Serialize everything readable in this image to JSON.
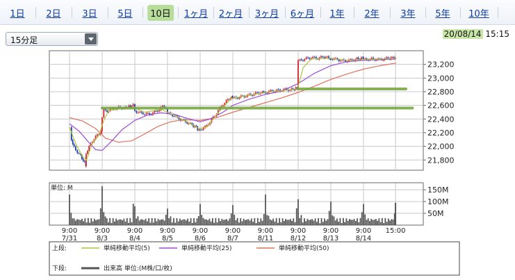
{
  "tabs": [
    {
      "label": "1日",
      "active": false
    },
    {
      "label": "2日",
      "active": false
    },
    {
      "label": "3日",
      "active": false
    },
    {
      "label": "5日",
      "active": false
    },
    {
      "label": "10日",
      "active": true
    },
    {
      "label": "1ヶ月",
      "active": false
    },
    {
      "label": "2ヶ月",
      "active": false
    },
    {
      "label": "3ヶ月",
      "active": false
    },
    {
      "label": "6ヶ月",
      "active": false
    },
    {
      "label": "1年",
      "active": false
    },
    {
      "label": "2年",
      "active": false
    },
    {
      "label": "3年",
      "active": false
    },
    {
      "label": "5年",
      "active": false
    },
    {
      "label": "10年",
      "active": false
    }
  ],
  "interval_select": {
    "value": "15分足"
  },
  "timestamp": {
    "date": "20/08/14",
    "time": "15:15"
  },
  "colors": {
    "up": "#d2202a",
    "down": "#1a3aa8",
    "ma5": "#b3c43c",
    "ma25": "#9c4bd6",
    "ma50": "#e0705a",
    "volume": "#555555",
    "trendline": "#78a843"
  },
  "chart_data": [
    {
      "type": "candlestick",
      "title": "",
      "x_tick_labels": [
        {
          "time": "9:00",
          "date": "7/31"
        },
        {
          "time": "9:00",
          "date": "8/3"
        },
        {
          "time": "9:00",
          "date": "8/4"
        },
        {
          "time": "9:00",
          "date": "8/5"
        },
        {
          "time": "9:00",
          "date": "8/6"
        },
        {
          "time": "9:00",
          "date": "8/7"
        },
        {
          "time": "9:00",
          "date": "8/11"
        },
        {
          "time": "9:00",
          "date": "8/12"
        },
        {
          "time": "9:00",
          "date": "8/13"
        },
        {
          "time": "9:00",
          "date": "8/14"
        },
        {
          "time": "15:00",
          "date": ""
        }
      ],
      "ylim": [
        21650,
        23400
      ],
      "y_ticks": [
        21800,
        22000,
        22200,
        22400,
        22600,
        22800,
        23000,
        23200
      ],
      "y_tick_labels": [
        "21,800",
        "22,000",
        "22,200",
        "22,400",
        "22,600",
        "22,800",
        "23,000",
        "23,200"
      ],
      "grid": true,
      "price_path": [
        [
          0,
          22280
        ],
        [
          0.06,
          22100
        ],
        [
          0.14,
          21980
        ],
        [
          0.24,
          21920
        ],
        [
          0.34,
          21860
        ],
        [
          0.42,
          21790
        ],
        [
          0.5,
          21730
        ],
        [
          0.51,
          21900
        ],
        [
          0.6,
          21990
        ],
        [
          0.7,
          22080
        ],
        [
          0.8,
          22140
        ],
        [
          0.9,
          22180
        ],
        [
          0.98,
          22210
        ],
        [
          1.0,
          22420
        ],
        [
          1.05,
          22530
        ],
        [
          1.15,
          22520
        ],
        [
          1.3,
          22550
        ],
        [
          1.45,
          22560
        ],
        [
          1.55,
          22570
        ],
        [
          1.7,
          22560
        ],
        [
          1.82,
          22580
        ],
        [
          1.95,
          22600
        ],
        [
          2.0,
          22520
        ],
        [
          2.15,
          22490
        ],
        [
          2.3,
          22480
        ],
        [
          2.45,
          22470
        ],
        [
          2.6,
          22500
        ],
        [
          2.75,
          22540
        ],
        [
          2.85,
          22580
        ],
        [
          2.95,
          22570
        ],
        [
          3.0,
          22480
        ],
        [
          3.15,
          22460
        ],
        [
          3.3,
          22420
        ],
        [
          3.45,
          22380
        ],
        [
          3.6,
          22350
        ],
        [
          3.75,
          22310
        ],
        [
          3.88,
          22280
        ],
        [
          3.96,
          22230
        ],
        [
          4.0,
          22250
        ],
        [
          4.15,
          22280
        ],
        [
          4.3,
          22360
        ],
        [
          4.45,
          22450
        ],
        [
          4.6,
          22560
        ],
        [
          4.75,
          22640
        ],
        [
          4.9,
          22700
        ],
        [
          4.98,
          22720
        ],
        [
          5.0,
          22700
        ],
        [
          5.2,
          22720
        ],
        [
          5.4,
          22740
        ],
        [
          5.6,
          22760
        ],
        [
          5.75,
          22780
        ],
        [
          5.9,
          22790
        ],
        [
          5.98,
          22800
        ],
        [
          6.0,
          22790
        ],
        [
          6.2,
          22810
        ],
        [
          6.4,
          22820
        ],
        [
          6.6,
          22830
        ],
        [
          6.8,
          22830
        ],
        [
          6.97,
          22850
        ],
        [
          7.0,
          23250
        ],
        [
          7.2,
          23280
        ],
        [
          7.4,
          23300
        ],
        [
          7.6,
          23290
        ],
        [
          7.8,
          23310
        ],
        [
          7.98,
          23290
        ],
        [
          8.0,
          23290
        ],
        [
          8.2,
          23270
        ],
        [
          8.4,
          23250
        ],
        [
          8.6,
          23260
        ],
        [
          8.8,
          23280
        ],
        [
          8.98,
          23290
        ],
        [
          9.0,
          23270
        ],
        [
          9.25,
          23280
        ],
        [
          9.5,
          23270
        ],
        [
          9.75,
          23290
        ],
        [
          9.98,
          23300
        ]
      ],
      "ma5": [
        [
          0,
          22280
        ],
        [
          0.2,
          22030
        ],
        [
          0.4,
          21850
        ],
        [
          0.52,
          21800
        ],
        [
          0.7,
          22050
        ],
        [
          0.9,
          22160
        ],
        [
          1.05,
          22380
        ],
        [
          1.2,
          22520
        ],
        [
          1.6,
          22560
        ],
        [
          2.0,
          22560
        ],
        [
          2.3,
          22500
        ],
        [
          2.8,
          22540
        ],
        [
          3.1,
          22480
        ],
        [
          3.6,
          22360
        ],
        [
          3.95,
          22260
        ],
        [
          4.2,
          22280
        ],
        [
          4.6,
          22520
        ],
        [
          4.95,
          22700
        ],
        [
          5.5,
          22750
        ],
        [
          6.0,
          22790
        ],
        [
          6.6,
          22820
        ],
        [
          6.98,
          22840
        ],
        [
          7.15,
          23150
        ],
        [
          7.4,
          23280
        ],
        [
          8.0,
          23290
        ],
        [
          8.5,
          23260
        ],
        [
          9.0,
          23270
        ],
        [
          10.0,
          23290
        ]
      ],
      "ma25": [
        [
          0,
          22330
        ],
        [
          0.3,
          22220
        ],
        [
          0.55,
          22080
        ],
        [
          0.8,
          21950
        ],
        [
          1.0,
          21940
        ],
        [
          1.3,
          22080
        ],
        [
          1.6,
          22240
        ],
        [
          2.0,
          22380
        ],
        [
          2.4,
          22460
        ],
        [
          2.8,
          22490
        ],
        [
          3.2,
          22470
        ],
        [
          3.6,
          22410
        ],
        [
          4.0,
          22360
        ],
        [
          4.3,
          22400
        ],
        [
          4.7,
          22500
        ],
        [
          5.0,
          22600
        ],
        [
          5.5,
          22690
        ],
        [
          6.0,
          22760
        ],
        [
          6.5,
          22810
        ],
        [
          7.0,
          22920
        ],
        [
          7.5,
          23070
        ],
        [
          8.0,
          23180
        ],
        [
          8.5,
          23240
        ],
        [
          9.0,
          23260
        ],
        [
          10.0,
          23280
        ]
      ],
      "ma50": [
        [
          0,
          22420
        ],
        [
          0.4,
          22370
        ],
        [
          0.8,
          22260
        ],
        [
          1.1,
          22120
        ],
        [
          1.5,
          22060
        ],
        [
          1.9,
          22080
        ],
        [
          2.3,
          22180
        ],
        [
          2.7,
          22290
        ],
        [
          3.1,
          22360
        ],
        [
          3.5,
          22390
        ],
        [
          4.0,
          22380
        ],
        [
          4.5,
          22420
        ],
        [
          5.0,
          22500
        ],
        [
          5.5,
          22570
        ],
        [
          6.0,
          22640
        ],
        [
          6.5,
          22710
        ],
        [
          7.0,
          22790
        ],
        [
          7.5,
          22880
        ],
        [
          8.0,
          22980
        ],
        [
          8.5,
          23060
        ],
        [
          9.0,
          23130
        ],
        [
          9.5,
          23180
        ],
        [
          10.0,
          23220
        ]
      ],
      "trendlines": [
        [
          [
            1.0,
            22560
          ],
          [
            10.5,
            22560
          ]
        ],
        [
          [
            7.0,
            22840
          ],
          [
            10.3,
            22840
          ]
        ]
      ]
    },
    {
      "type": "bar",
      "ylabel": "単位: M",
      "ylim": [
        0,
        180
      ],
      "y_ticks": [
        50,
        100,
        150
      ],
      "y_tick_labels": [
        "50M",
        "100M",
        "150M"
      ],
      "session_opens": [
        0,
        1,
        2,
        3,
        4,
        5,
        6,
        7,
        8,
        9
      ],
      "session_peaks": [
        130,
        165,
        80,
        70,
        90,
        85,
        130,
        110,
        100,
        90
      ],
      "last_bar": 95
    }
  ],
  "legend": {
    "upper_label": "上段:",
    "items": [
      "単純移動平均(5)",
      "単純移動平均(25)",
      "単純移動平均(50)"
    ],
    "lower_label": "下段:",
    "lower_item": "出来高 単位:(M株/口/枚)"
  }
}
